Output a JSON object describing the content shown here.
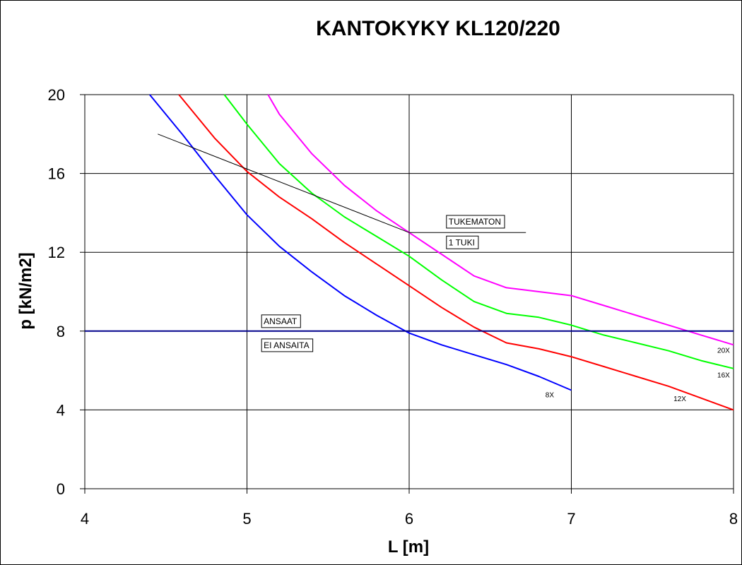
{
  "chart_data": {
    "type": "line",
    "title": "KANTOKYKY KL120/220",
    "xlabel": "L [m]",
    "ylabel": "p [kN/m2]",
    "xlim": [
      4,
      8
    ],
    "ylim": [
      0,
      20
    ],
    "xticks": [
      4,
      5,
      6,
      7,
      8
    ],
    "yticks": [
      0,
      4,
      8,
      12,
      16,
      20
    ],
    "grid": true,
    "legend": "none",
    "series": [
      {
        "name": "8X",
        "color": "#0000ff",
        "x": [
          4.4,
          4.6,
          4.8,
          5.0,
          5.2,
          5.4,
          5.6,
          5.8,
          6.0,
          6.2,
          6.4,
          6.6,
          6.8,
          7.0
        ],
        "y": [
          20.0,
          18.0,
          15.9,
          13.9,
          12.3,
          11.0,
          9.8,
          8.8,
          7.9,
          7.3,
          6.8,
          6.3,
          5.7,
          5.0
        ]
      },
      {
        "name": "12X",
        "color": "#ff0000",
        "x": [
          4.58,
          4.8,
          5.0,
          5.2,
          5.4,
          5.6,
          5.8,
          6.0,
          6.2,
          6.4,
          6.6,
          6.8,
          7.0,
          7.2,
          7.4,
          7.6,
          7.8,
          8.0
        ],
        "y": [
          20.0,
          17.8,
          16.1,
          14.8,
          13.7,
          12.5,
          11.4,
          10.3,
          9.2,
          8.2,
          7.4,
          7.1,
          6.7,
          6.2,
          5.7,
          5.2,
          4.6,
          4.0
        ]
      },
      {
        "name": "16X",
        "color": "#00ff00",
        "x": [
          4.86,
          5.0,
          5.2,
          5.4,
          5.6,
          5.8,
          6.0,
          6.2,
          6.4,
          6.6,
          6.8,
          7.0,
          7.2,
          7.4,
          7.6,
          7.8,
          8.0
        ],
        "y": [
          20.0,
          18.5,
          16.5,
          15.0,
          13.8,
          12.8,
          11.8,
          10.6,
          9.5,
          8.9,
          8.7,
          8.3,
          7.8,
          7.4,
          7.0,
          6.5,
          6.1
        ]
      },
      {
        "name": "20X",
        "color": "#ff00ff",
        "x": [
          5.13,
          5.2,
          5.4,
          5.6,
          5.8,
          6.0,
          6.2,
          6.4,
          6.6,
          6.8,
          7.0,
          7.2,
          7.4,
          7.6,
          7.8,
          8.0
        ],
        "y": [
          20.0,
          19.0,
          17.0,
          15.4,
          14.1,
          13.0,
          11.9,
          10.8,
          10.2,
          10.0,
          9.8,
          9.3,
          8.8,
          8.3,
          7.8,
          7.3
        ]
      },
      {
        "name": "TUKEMATON / 1 TUKI",
        "color": "#000000",
        "x": [
          4.45,
          6.0,
          6.0,
          6.72
        ],
        "y": [
          18.0,
          13.0,
          13.0,
          13.0
        ]
      },
      {
        "name": "ANSAAT / EI ANSAITA",
        "color": "#00008b",
        "x": [
          4.0,
          8.0
        ],
        "y": [
          8.0,
          8.0
        ]
      }
    ],
    "annotations": [
      {
        "text": "TUKEMATON",
        "x": 6.23,
        "y": 13.55,
        "boxed": true
      },
      {
        "text": "1 TUKI",
        "x": 6.23,
        "y": 12.5,
        "boxed": true
      },
      {
        "text": "ANSAAT",
        "x": 5.09,
        "y": 8.5,
        "boxed": true
      },
      {
        "text": "EI ANSAITA",
        "x": 5.09,
        "y": 7.28,
        "boxed": true
      },
      {
        "text": "20X",
        "x": 7.9,
        "y": 6.9,
        "boxed": false
      },
      {
        "text": "16X",
        "x": 7.9,
        "y": 5.65,
        "boxed": false
      },
      {
        "text": "12X",
        "x": 7.63,
        "y": 4.45,
        "boxed": false
      },
      {
        "text": "8X",
        "x": 6.84,
        "y": 4.65,
        "boxed": false
      }
    ]
  }
}
